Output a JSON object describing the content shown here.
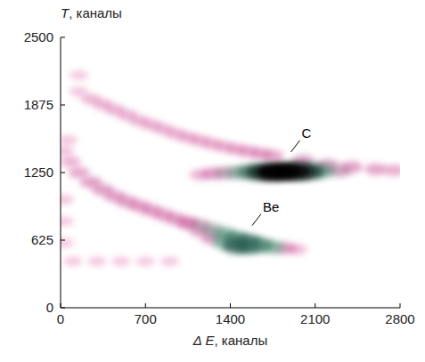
{
  "chart_data": {
    "type": "scatter",
    "x_label": "Δ E, каналы",
    "y_label": "T, каналы",
    "xlim": [
      0,
      2800
    ],
    "ylim": [
      0,
      2500
    ],
    "xticks": [
      0,
      700,
      1400,
      2100,
      2800
    ],
    "yticks": [
      0,
      625,
      1250,
      1875,
      2500
    ],
    "series": [
      {
        "x": [
          150,
          250,
          350,
          450,
          550,
          650,
          750,
          850,
          950,
          1050,
          1150,
          1250,
          1350,
          1450,
          1550,
          1650,
          1750,
          2000,
          2200,
          2400,
          2600,
          2750,
          1150,
          1250,
          1350,
          1450,
          1550,
          1650,
          1750,
          1850,
          1950,
          2050,
          2150,
          2300
        ],
        "values": [
          2000,
          1930,
          1880,
          1830,
          1780,
          1730,
          1690,
          1650,
          1610,
          1575,
          1545,
          1515,
          1490,
          1465,
          1445,
          1425,
          1405,
          1360,
          1320,
          1300,
          1280,
          1270,
          1230,
          1240,
          1245,
          1250,
          1255,
          1255,
          1255,
          1260,
          1260,
          1260,
          1265,
          1265
        ],
        "counts": [
          8,
          18,
          20,
          20,
          20,
          20,
          20,
          20,
          20,
          22,
          22,
          22,
          22,
          24,
          25,
          26,
          28,
          32,
          32,
          30,
          28,
          24,
          20,
          28,
          36,
          42,
          60,
          85,
          100,
          100,
          95,
          80,
          55,
          35
        ]
      },
      {
        "x": [
          30,
          80,
          150,
          250,
          350,
          450,
          550,
          650,
          750,
          850,
          950,
          1050,
          1150,
          1250,
          1350,
          1450,
          1550,
          1650,
          1750,
          1850,
          1950,
          1050,
          1150,
          1250,
          1350,
          1450,
          1550
        ],
        "values": [
          1450,
          1350,
          1250,
          1160,
          1090,
          1030,
          980,
          940,
          900,
          860,
          820,
          790,
          760,
          720,
          680,
          640,
          610,
          580,
          560,
          550,
          540,
          770,
          700,
          640,
          600,
          570,
          560
        ],
        "counts": [
          10,
          20,
          25,
          30,
          30,
          30,
          30,
          30,
          30,
          30,
          30,
          30,
          35,
          40,
          50,
          60,
          65,
          60,
          45,
          30,
          15,
          15,
          20,
          30,
          45,
          70,
          60
        ]
      },
      {
        "x": [
          30,
          30,
          30,
          60,
          100,
          300,
          500,
          700,
          900,
          150
        ],
        "values": [
          600,
          800,
          1000,
          1550,
          430,
          430,
          430,
          430,
          430,
          2150
        ],
        "counts": [
          6,
          6,
          8,
          8,
          6,
          6,
          6,
          6,
          6,
          6
        ]
      }
    ],
    "annotations": [
      {
        "text": "C",
        "x": 1900,
        "y": 1440
      },
      {
        "text": "Be",
        "x": 1580,
        "y": 760
      }
    ]
  }
}
